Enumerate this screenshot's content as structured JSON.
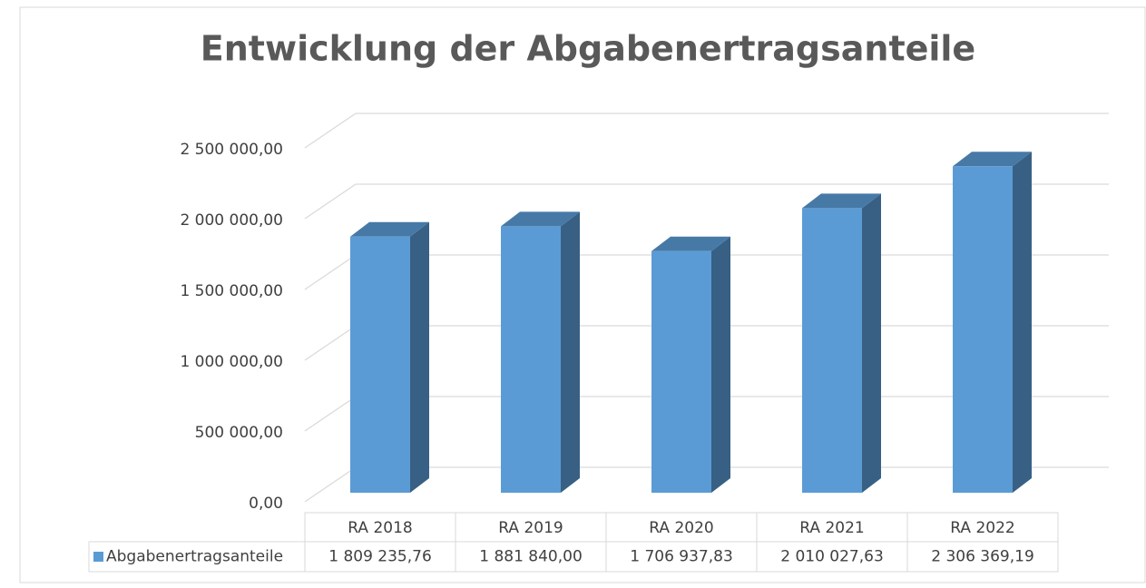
{
  "chart_data": {
    "type": "bar3d",
    "title": "Entwicklung der Abgabenertragsanteile",
    "categories": [
      "RA 2018",
      "RA 2019",
      "RA 2020",
      "RA 2021",
      "RA 2022"
    ],
    "series": [
      {
        "name": "Abgabenertragsanteile",
        "color": "#5b9bd5",
        "values": [
          1809235.76,
          1881840.0,
          1706937.83,
          2010027.63,
          2306369.19
        ],
        "value_labels": [
          "1 809 235,76",
          "1 881 840,00",
          "1 706 937,83",
          "2 010 027,63",
          "2 306 369,19"
        ]
      }
    ],
    "ylim": [
      0,
      2500000
    ],
    "yticks": [
      {
        "value": 0,
        "label": "0,00"
      },
      {
        "value": 500000,
        "label": "500 000,00"
      },
      {
        "value": 1000000,
        "label": "1 000 000,00"
      },
      {
        "value": 1500000,
        "label": "1 500 000,00"
      },
      {
        "value": 2000000,
        "label": "2 000 000,00"
      },
      {
        "value": 2500000,
        "label": "2 500 000,00"
      }
    ],
    "grid": true,
    "data_table": true
  }
}
